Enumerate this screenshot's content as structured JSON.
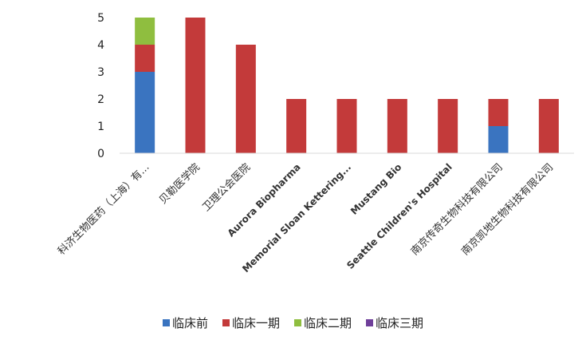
{
  "chart_data": {
    "type": "bar",
    "stacked": true,
    "orientation": "vertical",
    "title": "",
    "xlabel": "",
    "ylabel": "",
    "ylim": [
      0,
      5
    ],
    "yticks": [
      0,
      1,
      2,
      3,
      4,
      5
    ],
    "grid": false,
    "legend_position": "bottom",
    "categories": [
      "科济生物医药（上海）有...",
      "贝勒医学院",
      "卫理公会医院",
      "Aurora Biopharma",
      "Memorial Sloan Kettering...",
      "Mustang Bio",
      "Seattle Children's Hospital",
      "南京传奇生物科技有限公司",
      "南京凯地生物科技有限公司"
    ],
    "series": [
      {
        "name": "临床前",
        "color": "#3a74c0",
        "values": [
          3,
          0,
          0,
          0,
          0,
          0,
          0,
          1,
          0
        ]
      },
      {
        "name": "临床一期",
        "color": "#c33a3a",
        "values": [
          1,
          5,
          4,
          2,
          2,
          2,
          2,
          1,
          2
        ]
      },
      {
        "name": "临床二期",
        "color": "#8fbe3f",
        "values": [
          1,
          0,
          0,
          0,
          0,
          0,
          0,
          0,
          0
        ]
      },
      {
        "name": "临床三期",
        "color": "#6f3f9a",
        "values": [
          0,
          0,
          0,
          0,
          0,
          0,
          0,
          0,
          0
        ]
      }
    ]
  }
}
